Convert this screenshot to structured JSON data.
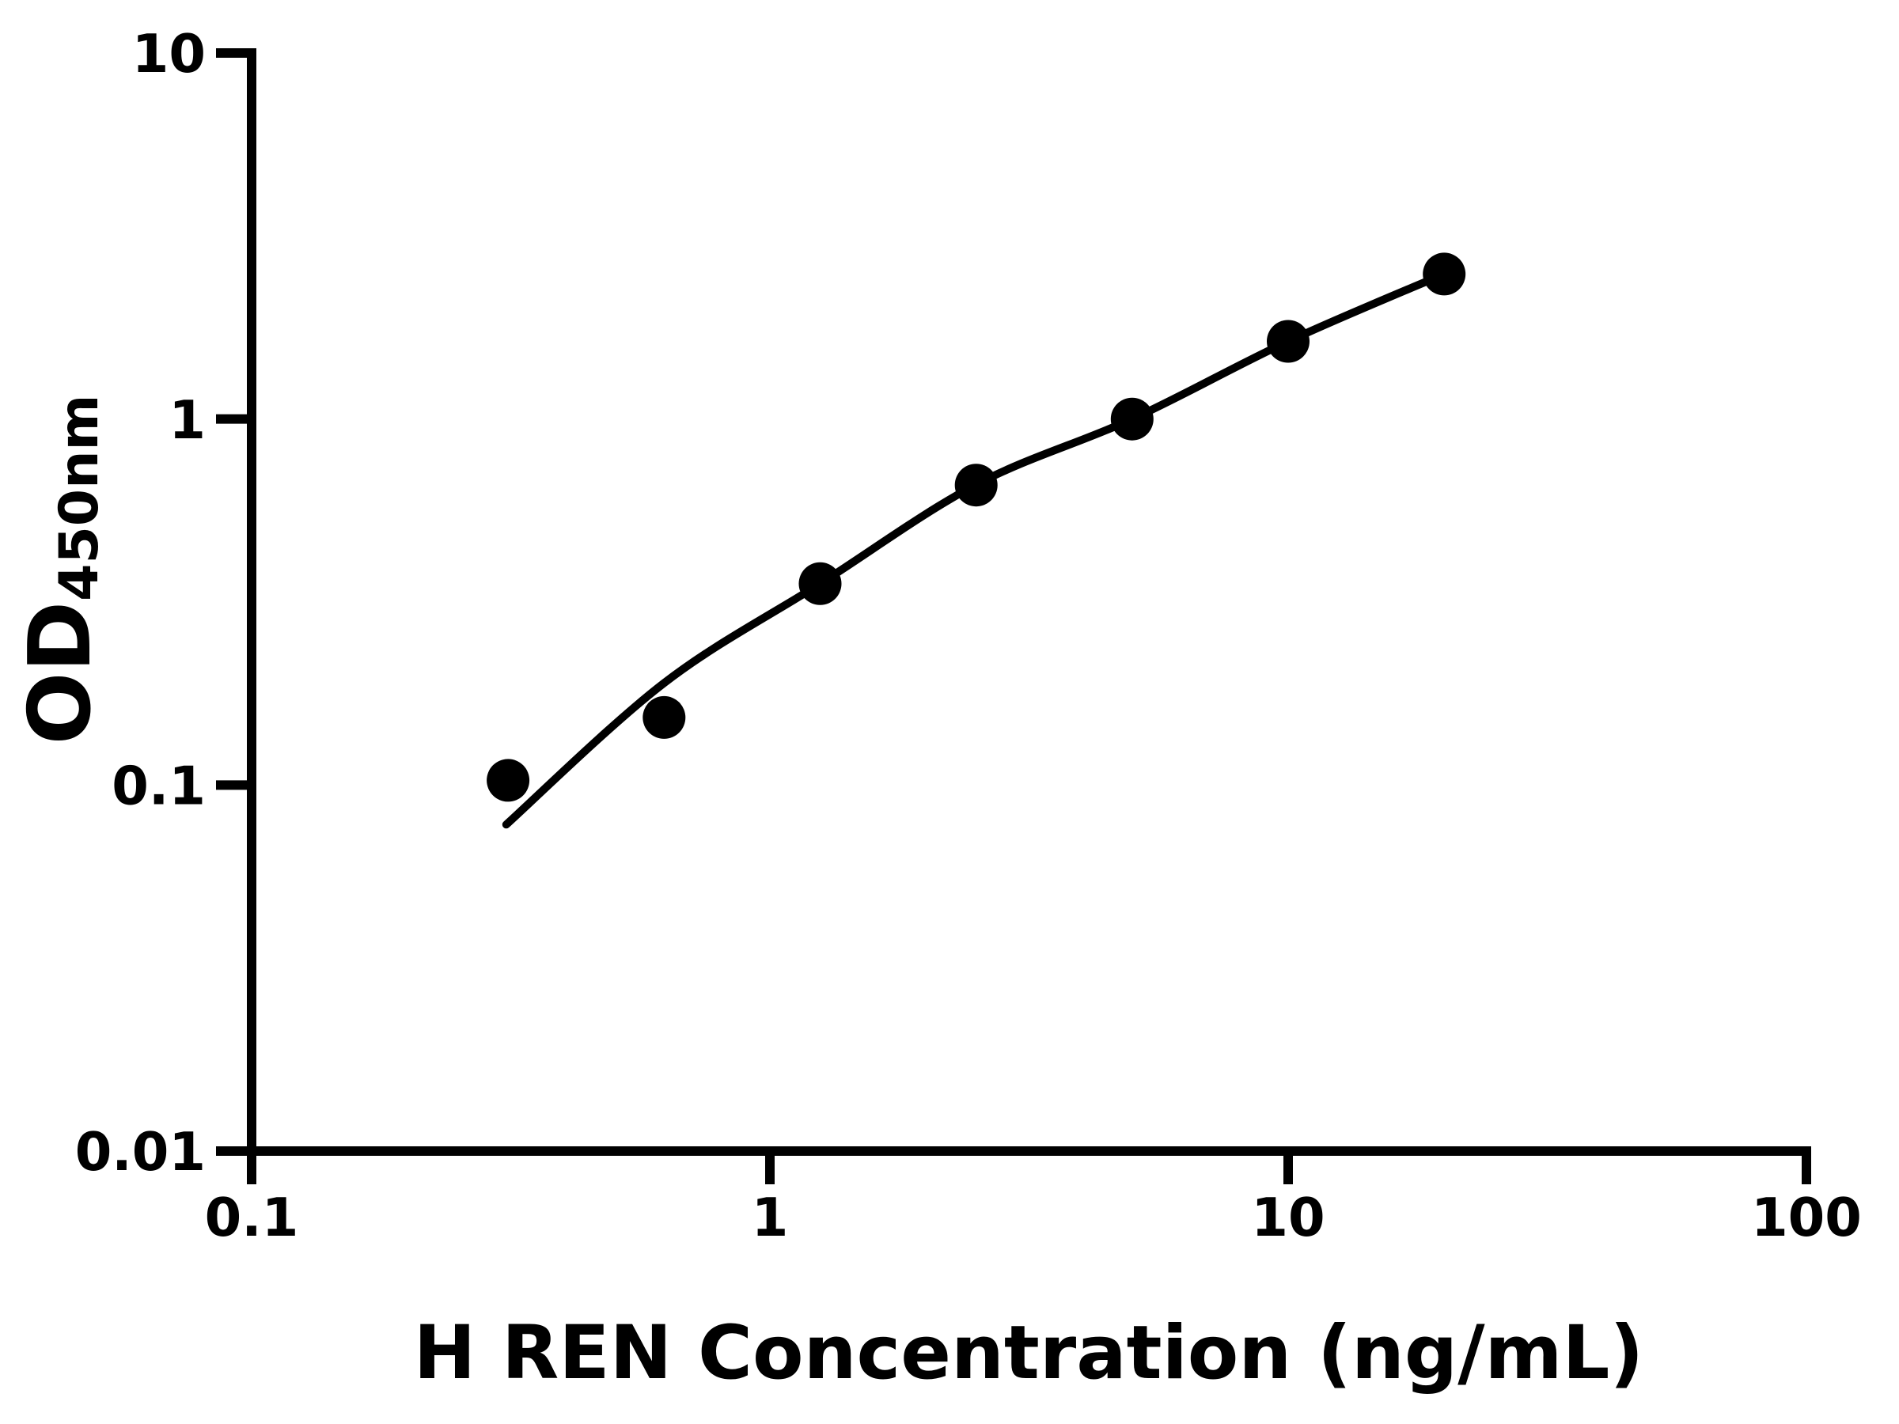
{
  "styles": {
    "background": "#ffffff",
    "ink": "#000000"
  },
  "chart_data": {
    "type": "scatter",
    "title": "",
    "xlabel": "H REN Concentration (ng/mL)",
    "ylabel_main": "OD",
    "ylabel_sub": "450nm",
    "x_scale": "log",
    "y_scale": "log",
    "xlim": [
      0.1,
      100
    ],
    "ylim": [
      0.01,
      10
    ],
    "grid": false,
    "legend": false,
    "x_ticks": [
      {
        "value": 0.1,
        "label": "0.1"
      },
      {
        "value": 1,
        "label": "1"
      },
      {
        "value": 10,
        "label": "10"
      },
      {
        "value": 100,
        "label": "100"
      }
    ],
    "y_ticks": [
      {
        "value": 0.01,
        "label": "0.01"
      },
      {
        "value": 0.1,
        "label": "0.1"
      },
      {
        "value": 1,
        "label": "1"
      },
      {
        "value": 10,
        "label": "10"
      }
    ],
    "points": [
      {
        "x": 0.3125,
        "y": 0.103
      },
      {
        "x": 0.625,
        "y": 0.153
      },
      {
        "x": 1.25,
        "y": 0.355
      },
      {
        "x": 2.5,
        "y": 0.66
      },
      {
        "x": 5,
        "y": 1.0
      },
      {
        "x": 10,
        "y": 1.63
      },
      {
        "x": 20,
        "y": 2.49
      }
    ],
    "fit_curve": [
      {
        "x": 0.31,
        "y": 0.078
      },
      {
        "x": 0.625,
        "y": 0.19
      },
      {
        "x": 1.25,
        "y": 0.355
      },
      {
        "x": 2.5,
        "y": 0.662
      },
      {
        "x": 5,
        "y": 1.0
      },
      {
        "x": 10,
        "y": 1.63
      },
      {
        "x": 20,
        "y": 2.49
      }
    ],
    "marker_color": "#000000",
    "line_color": "#000000",
    "axis_color": "#000000"
  }
}
